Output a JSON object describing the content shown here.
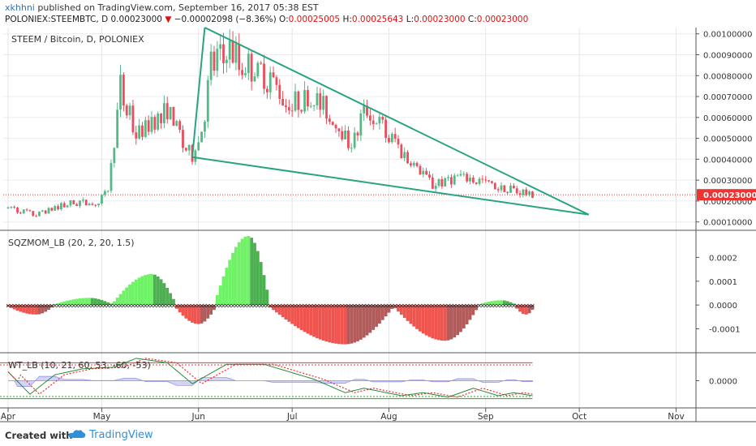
{
  "header": {
    "user": "xkhhni",
    "published": "published on TradingView.com, September 16, 2017 05:38 EST",
    "symbol": "POLONIEX:STEEMBTC, D",
    "last": "0.00023000",
    "change_arrow": "▼",
    "change": "−0.00002098 (−8.36%)",
    "open_label": "O:",
    "open": "0.00025005",
    "high_label": "H:",
    "high": "0.00025643",
    "low_label": "L:",
    "low": "0.00023000",
    "close_label": "C:",
    "close": "0.00023000"
  },
  "footer": {
    "created_with": "Created with",
    "brand": "TradingView"
  },
  "colors": {
    "up": "#53b987",
    "down": "#eb4d5c",
    "trend": "#2aa382",
    "mom_bright_green": "#6ff266",
    "mom_dark_green": "#4caf50",
    "mom_bright_red": "#f0544f",
    "mom_dark_red": "#b35b5b",
    "wt_line1": "#2a8a3a",
    "wt_line2": "#e83030",
    "wt_fill": "#b6b6ee"
  },
  "chart_data": [
    {
      "type": "candlestick",
      "title": "STEEM / Bitcoin, D, POLONIEX",
      "x_ticks": [
        "Apr",
        "May",
        "Jun",
        "Jul",
        "Aug",
        "Sep",
        "Oct",
        "Nov"
      ],
      "y_ticks": [
        "0.00010000",
        "0.00020000",
        "0.00030000",
        "0.00040000",
        "0.00050000",
        "0.00060000",
        "0.00070000",
        "0.00080000",
        "0.00090000",
        "0.00100000"
      ],
      "ylim": [
        6e-05,
        0.00103
      ],
      "last_price_label": "0.00023000",
      "last_price": 0.00023,
      "price_path": [
        [
          "2017-04-01",
          0.000165
        ],
        [
          "2017-04-10",
          0.000135
        ],
        [
          "2017-04-20",
          0.00019
        ],
        [
          "2017-04-30",
          0.000195
        ],
        [
          "2017-05-03",
          0.00026
        ],
        [
          "2017-05-05",
          0.00048
        ],
        [
          "2017-05-07",
          0.00075
        ],
        [
          "2017-05-12",
          0.00052
        ],
        [
          "2017-05-18",
          0.00058
        ],
        [
          "2017-05-22",
          0.00064
        ],
        [
          "2017-05-26",
          0.00052
        ],
        [
          "2017-05-30",
          0.00041
        ],
        [
          "2017-06-03",
          0.00061
        ],
        [
          "2017-06-05",
          0.00085
        ],
        [
          "2017-06-10",
          0.00092
        ],
        [
          "2017-06-20",
          0.00081
        ],
        [
          "2017-06-30",
          0.00068
        ],
        [
          "2017-07-10",
          0.00068
        ],
        [
          "2017-07-20",
          0.00047
        ],
        [
          "2017-07-25",
          0.00065
        ],
        [
          "2017-08-05",
          0.00043
        ],
        [
          "2017-08-15",
          0.00028
        ],
        [
          "2017-08-25",
          0.00031
        ],
        [
          "2017-09-05",
          0.00027
        ],
        [
          "2017-09-16",
          0.00023
        ]
      ],
      "trendlines": [
        {
          "from": [
            "2017-06-03",
            0.00103
          ],
          "to": [
            "2017-10-04",
            0.000135
          ]
        },
        {
          "from": [
            "2017-05-30",
            0.00041
          ],
          "to": [
            "2017-10-04",
            0.000135
          ]
        },
        {
          "from": [
            "2017-05-30",
            0.00041
          ],
          "to": [
            "2017-06-03",
            0.00103
          ]
        }
      ]
    },
    {
      "type": "bar",
      "title": "SQZMOM_LB (20, 2, 20, 1.5)",
      "y_ticks": [
        "-0.0001",
        "0.0000",
        "0.0001",
        "0.0002"
      ],
      "ylim": [
        -0.00018,
        0.00029
      ],
      "segments": [
        {
          "from": "2017-04-01",
          "to": "2017-04-15",
          "peak": -4e-05
        },
        {
          "from": "2017-04-16",
          "to": "2017-05-04",
          "peak": 3e-05
        },
        {
          "from": "2017-05-05",
          "to": "2017-05-24",
          "peak": 0.00013
        },
        {
          "from": "2017-05-25",
          "to": "2017-06-06",
          "peak": -8e-05
        },
        {
          "from": "2017-06-07",
          "to": "2017-06-23",
          "peak": 0.00029
        },
        {
          "from": "2017-06-24",
          "to": "2017-08-02",
          "peak": -0.000165
        },
        {
          "from": "2017-08-03",
          "to": "2017-08-29",
          "peak": -0.00015
        },
        {
          "from": "2017-08-30",
          "to": "2017-09-10",
          "peak": 2e-05
        },
        {
          "from": "2017-09-11",
          "to": "2017-09-16",
          "peak": -4e-05
        }
      ]
    },
    {
      "type": "line",
      "title": "WT_LB (10, 21, 60, 53, -60, -53)",
      "y_ticks": [
        "0.0000"
      ],
      "ylim": [
        -80,
        80
      ],
      "levels": [
        60,
        53,
        -60,
        -53
      ],
      "series": [
        {
          "name": "",
          "values": [
            [
              "2017-04-01",
              30
            ],
            [
              "2017-04-08",
              -45
            ],
            [
              "2017-04-16",
              20
            ],
            [
              "2017-04-25",
              40
            ],
            [
              "2017-05-05",
              45
            ],
            [
              "2017-05-12",
              75
            ],
            [
              "2017-05-22",
              60
            ],
            [
              "2017-05-30",
              -10
            ],
            [
              "2017-06-10",
              55
            ],
            [
              "2017-06-22",
              55
            ],
            [
              "2017-07-08",
              5
            ],
            [
              "2017-07-18",
              -40
            ],
            [
              "2017-07-24",
              -25
            ],
            [
              "2017-08-05",
              -50
            ],
            [
              "2017-08-12",
              -40
            ],
            [
              "2017-08-20",
              -55
            ],
            [
              "2017-08-28",
              -25
            ],
            [
              "2017-09-05",
              -50
            ],
            [
              "2017-09-10",
              -40
            ],
            [
              "2017-09-16",
              -50
            ]
          ]
        }
      ]
    }
  ]
}
